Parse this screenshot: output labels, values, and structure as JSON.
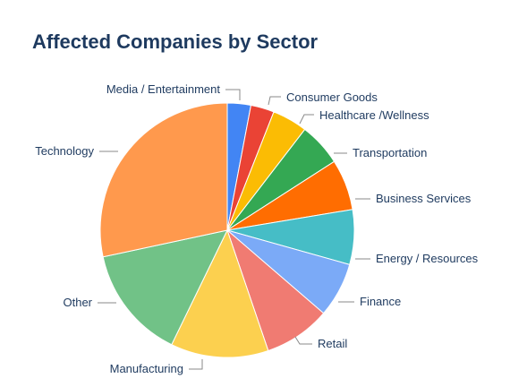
{
  "chart_data": {
    "type": "pie",
    "title": "Affected Companies by Sector",
    "categories": [
      "Media / Entertainment",
      "Consumer Goods",
      "Healthcare /Wellness",
      "Transportation",
      "Business Services",
      "Energy / Resources",
      "Finance",
      "Retail",
      "Manufacturing",
      "Other",
      "Technology"
    ],
    "values": [
      3,
      3,
      4.5,
      5.5,
      6.5,
      7,
      7,
      8.5,
      12.5,
      14.5,
      28.5
    ],
    "colors": [
      "#4285f4",
      "#ea4335",
      "#fbbc04",
      "#34a853",
      "#ff6d01",
      "#46bdc6",
      "#7baaf7",
      "#f07b72",
      "#fcd04f",
      "#71c287",
      "#ff994d"
    ],
    "legend": "labels-outside-with-leader-lines"
  }
}
